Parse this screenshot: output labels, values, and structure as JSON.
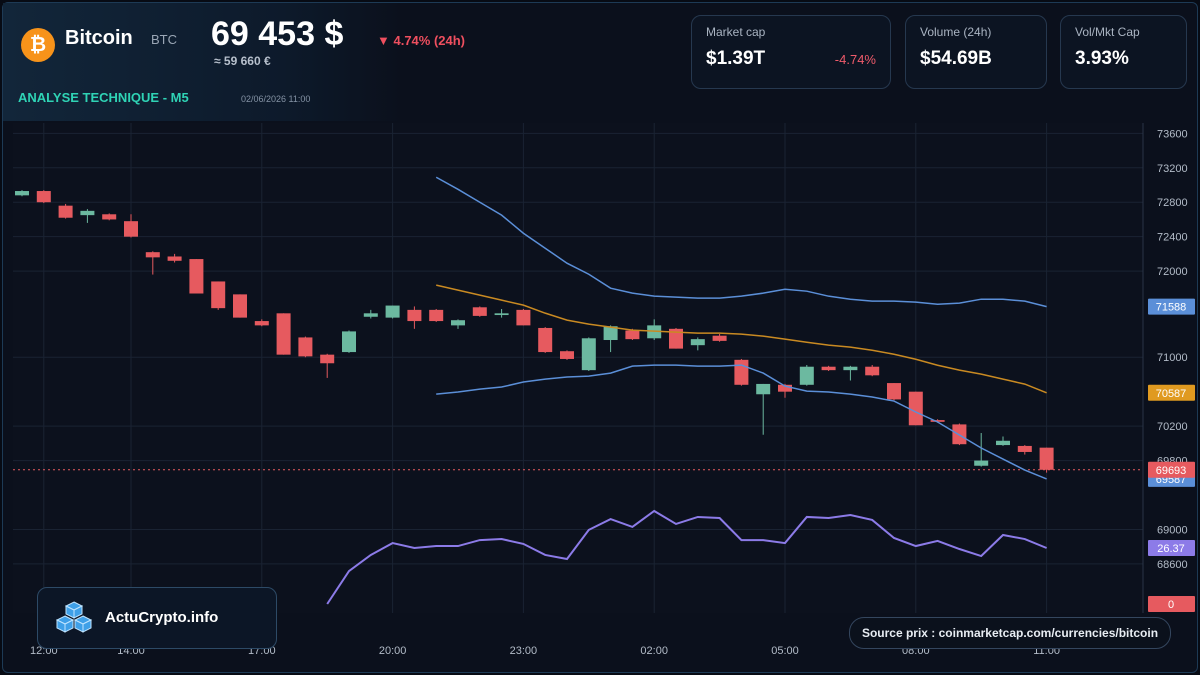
{
  "header": {
    "icon": "₿",
    "name": "Bitcoin",
    "symbol": "BTC",
    "price": "69 453 $",
    "change": "▼ 4.74% (24h)",
    "price_eur": "≈ 59 660 €",
    "section": "ANALYSE TECHNIQUE - M5",
    "timestamp": "02/06/2026 11:00"
  },
  "stats": [
    {
      "label": "Market cap",
      "value": "$1.39T",
      "change": "-4.74%"
    },
    {
      "label": "Volume (24h)",
      "value": "$54.69B"
    },
    {
      "label": "Vol/Mkt Cap",
      "value": "3.93%"
    }
  ],
  "brand": "ActuCrypto.info",
  "source": "Source prix : coinmarketcap.com/currencies/bitcoin",
  "chart_data": {
    "type": "candlestick",
    "categories": [
      null,
      "12:00",
      null,
      null,
      null,
      "14:00",
      null,
      null,
      null,
      null,
      null,
      "17:00",
      null,
      null,
      null,
      null,
      null,
      "20:00",
      null,
      null,
      null,
      null,
      null,
      "23:00",
      null,
      null,
      null,
      null,
      null,
      "02:00",
      null,
      null,
      null,
      null,
      null,
      "05:00",
      null,
      null,
      null,
      null,
      null,
      "08:00",
      null,
      null,
      null,
      null,
      null,
      "11:00"
    ],
    "open": [
      72880,
      72930,
      72760,
      72650,
      72660,
      72580,
      72220,
      72170,
      72140,
      71880,
      71730,
      71420,
      71510,
      71230,
      71030,
      71060,
      71470,
      71460,
      71550,
      71550,
      71370,
      71580,
      71490,
      71550,
      71340,
      71070,
      70850,
      71200,
      71310,
      71220,
      71330,
      71140,
      71250,
      70970,
      70570,
      70680,
      70680,
      70890,
      70850,
      70890,
      70700,
      70600,
      70270,
      70220,
      69740,
      69980,
      69970,
      69950
    ],
    "high": [
      72940,
      72940,
      72780,
      72720,
      72670,
      72660,
      72230,
      72200,
      72140,
      71880,
      71730,
      71440,
      71510,
      71240,
      71040,
      71310,
      71550,
      71600,
      71590,
      71560,
      71440,
      71590,
      71560,
      71560,
      71350,
      71080,
      71230,
      71370,
      71330,
      71440,
      71340,
      71230,
      71270,
      70980,
      70690,
      70690,
      70910,
      70900,
      70900,
      70910,
      70700,
      70600,
      70280,
      70230,
      70120,
      70080,
      69980,
      69950
    ],
    "low": [
      72870,
      72790,
      72610,
      72560,
      72590,
      72390,
      71960,
      72100,
      71740,
      71550,
      71460,
      71360,
      71030,
      71000,
      70760,
      71050,
      71450,
      71450,
      71330,
      71410,
      71330,
      71470,
      71460,
      71370,
      71050,
      70970,
      70840,
      71060,
      71200,
      71200,
      71100,
      71080,
      71180,
      70670,
      70100,
      70530,
      70670,
      70840,
      70730,
      70780,
      70500,
      70210,
      70240,
      69980,
      69730,
      69970,
      69870,
      69660
    ],
    "close": [
      72930,
      72800,
      72620,
      72700,
      72600,
      72400,
      72160,
      72120,
      71740,
      71570,
      71460,
      71370,
      71030,
      71010,
      70930,
      71300,
      71510,
      71600,
      71420,
      71420,
      71430,
      71480,
      71510,
      71370,
      71060,
      70980,
      71220,
      71360,
      71210,
      71370,
      71100,
      71210,
      71190,
      70680,
      70690,
      70600,
      70890,
      70850,
      70890,
      70790,
      70510,
      70210,
      70250,
      69990,
      69800,
      70030,
      69900,
      69693
    ],
    "up_color": "#6cb9a0",
    "down_color": "#e65a5f",
    "overlays": [
      {
        "color": "#5b8fd8",
        "tag_color": "#5b8fd8",
        "values": [
          null,
          null,
          null,
          null,
          null,
          null,
          null,
          null,
          null,
          null,
          null,
          null,
          null,
          null,
          null,
          null,
          null,
          null,
          null,
          73090,
          72950,
          72800,
          72650,
          72440,
          72266,
          72092,
          71964,
          71802,
          71744,
          71709,
          71698,
          71686,
          71686,
          71709,
          71744,
          71790,
          71767,
          71709,
          71674,
          71651,
          71651,
          71640,
          71616,
          71628,
          71674,
          71674,
          71651,
          71588
        ]
      },
      {
        "color": "#c98a22",
        "tag_color": "#e09a20",
        "values": [
          null,
          null,
          null,
          null,
          null,
          null,
          null,
          null,
          null,
          null,
          null,
          null,
          null,
          null,
          null,
          null,
          null,
          null,
          null,
          71837,
          71779,
          71721,
          71663,
          71605,
          71512,
          71431,
          71384,
          71350,
          71315,
          71303,
          71292,
          71280,
          71280,
          71268,
          71245,
          71210,
          71174,
          71140,
          71117,
          71081,
          71035,
          70977,
          70907,
          70850,
          70804,
          70746,
          70688,
          70587
        ]
      },
      {
        "color": "#5b8fd8",
        "tag_color": "#5b8fd8",
        "values": [
          null,
          null,
          null,
          null,
          null,
          null,
          null,
          null,
          null,
          null,
          null,
          null,
          null,
          null,
          null,
          null,
          null,
          null,
          null,
          70572,
          70596,
          70630,
          70654,
          70712,
          70746,
          70770,
          70781,
          70816,
          70897,
          70909,
          70909,
          70897,
          70897,
          70909,
          70816,
          70665,
          70607,
          70596,
          70572,
          70538,
          70491,
          70364,
          70248,
          70097,
          69946,
          69818,
          69690,
          69587
        ]
      },
      {
        "color": "#8c7be8",
        "tag_color": "#8c7be8",
        "axis": "y2",
        "values": [
          null,
          null,
          null,
          null,
          null,
          null,
          null,
          null,
          null,
          null,
          null,
          null,
          null,
          null,
          0,
          15.5,
          23.1,
          28.7,
          26.4,
          27.3,
          27.3,
          30.1,
          30.6,
          28.3,
          23.1,
          21.2,
          34.9,
          40.0,
          36.3,
          43.8,
          37.7,
          41.0,
          40.5,
          30.1,
          30.1,
          28.7,
          41.0,
          40.5,
          41.9,
          39.6,
          31.1,
          27.3,
          29.7,
          25.9,
          22.6,
          32.5,
          30.6,
          26.37
        ]
      }
    ],
    "ylim": [
      68030,
      73720
    ],
    "yticks": [
      73600,
      73200,
      72800,
      72400,
      72000,
      71000,
      70200,
      69800,
      69000,
      68600
    ],
    "y2lim": [
      -4.24,
      226.55
    ],
    "y2ticks": [
      0
    ],
    "grid": true
  }
}
